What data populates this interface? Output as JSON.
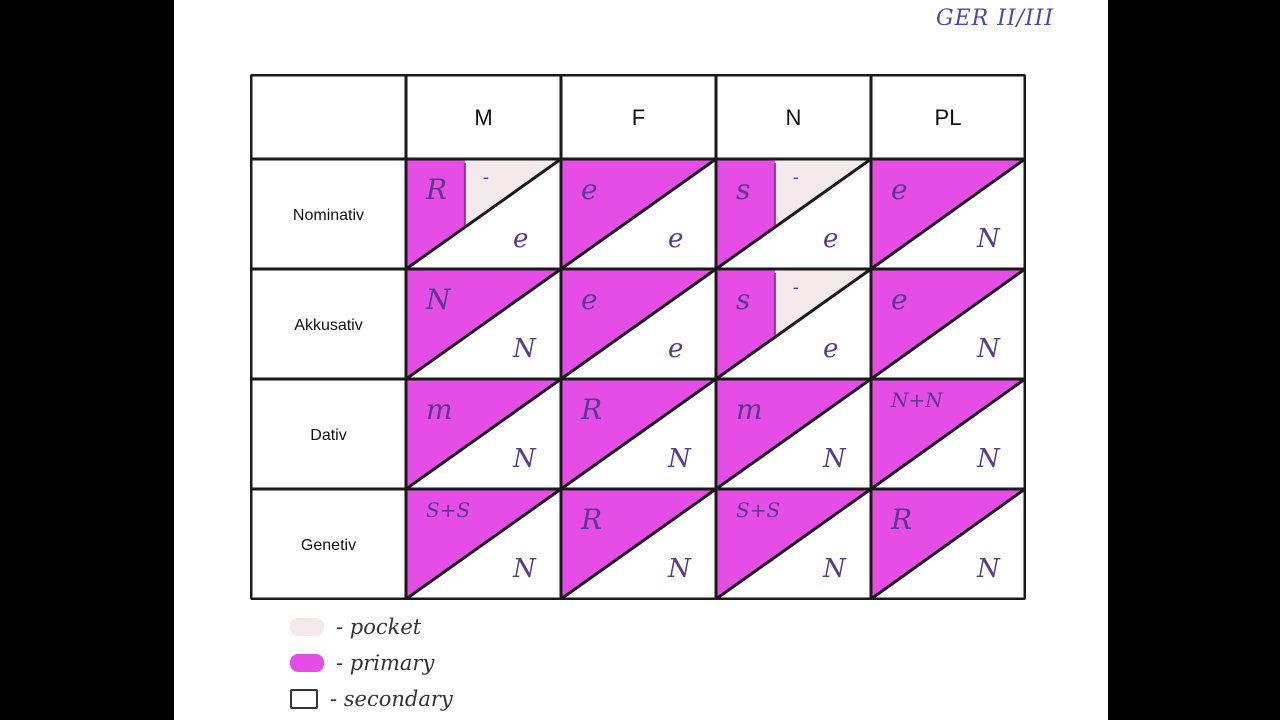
{
  "top_label": "GER II/III",
  "colors": {
    "primary": "#e64de6",
    "pocket": "#f3e8ea",
    "secondary": "#ffffff",
    "lines": "#1a1a1a",
    "ink": "#5a3a8a"
  },
  "table": {
    "columns": [
      "M",
      "F",
      "N",
      "PL"
    ],
    "rows": [
      {
        "case": "Nominativ",
        "cells": [
          {
            "primary": "R",
            "pocket": "-",
            "secondary": "e"
          },
          {
            "primary": "e",
            "pocket": "",
            "secondary": "e"
          },
          {
            "primary": "s",
            "pocket": "-",
            "secondary": "e"
          },
          {
            "primary": "e",
            "pocket": "",
            "secondary": "N"
          }
        ]
      },
      {
        "case": "Akkusativ",
        "cells": [
          {
            "primary": "N",
            "pocket": "",
            "secondary": "N"
          },
          {
            "primary": "e",
            "pocket": "",
            "secondary": "e"
          },
          {
            "primary": "s",
            "pocket": "-",
            "secondary": "e"
          },
          {
            "primary": "e",
            "pocket": "",
            "secondary": "N"
          }
        ]
      },
      {
        "case": "Dativ",
        "cells": [
          {
            "primary": "m",
            "pocket": "",
            "secondary": "N"
          },
          {
            "primary": "R",
            "pocket": "",
            "secondary": "N"
          },
          {
            "primary": "m",
            "pocket": "",
            "secondary": "N"
          },
          {
            "primary": "N+N",
            "pocket": "",
            "secondary": "N"
          }
        ]
      },
      {
        "case": "Genetiv",
        "cells": [
          {
            "primary": "S+S",
            "pocket": "",
            "secondary": "N"
          },
          {
            "primary": "R",
            "pocket": "",
            "secondary": "N"
          },
          {
            "primary": "S+S",
            "pocket": "",
            "secondary": "N"
          },
          {
            "primary": "R",
            "pocket": "",
            "secondary": "N"
          }
        ]
      }
    ]
  },
  "legend": [
    {
      "label": "- pocket",
      "key": "pocket"
    },
    {
      "label": "- primary",
      "key": "primary"
    },
    {
      "label": "- secondary",
      "key": "secondary"
    }
  ]
}
